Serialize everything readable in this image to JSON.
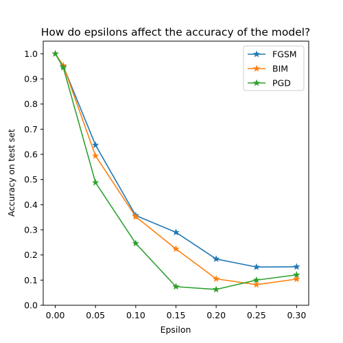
{
  "chart_data": {
    "type": "line",
    "title": "How do epsilons affect the accuracy of the model?",
    "xlabel": "Epsilon",
    "ylabel": "Accuracy on test set",
    "x": [
      0.0,
      0.01,
      0.05,
      0.1,
      0.15,
      0.2,
      0.25,
      0.3
    ],
    "xlim": [
      -0.015,
      0.315
    ],
    "ylim": [
      0.0,
      1.05
    ],
    "x_ticks": [
      0.0,
      0.05,
      0.1,
      0.15,
      0.2,
      0.25,
      0.3
    ],
    "x_tick_labels": [
      "0.00",
      "0.05",
      "0.10",
      "0.15",
      "0.20",
      "0.25",
      "0.30"
    ],
    "y_ticks": [
      0.0,
      0.1,
      0.2,
      0.3,
      0.4,
      0.5,
      0.6,
      0.7,
      0.8,
      0.9,
      1.0
    ],
    "y_tick_labels": [
      "0.0",
      "0.1",
      "0.2",
      "0.3",
      "0.4",
      "0.5",
      "0.6",
      "0.7",
      "0.8",
      "0.9",
      "1.0"
    ],
    "grid": false,
    "legend_position": "top-right",
    "marker": "star",
    "series": [
      {
        "name": "FGSM",
        "color": "#1f77b4",
        "values": [
          1.0,
          0.95,
          0.637,
          0.357,
          0.29,
          0.184,
          0.152,
          0.153
        ]
      },
      {
        "name": "BIM",
        "color": "#ff7f0e",
        "values": [
          1.0,
          0.953,
          0.594,
          0.352,
          0.224,
          0.105,
          0.082,
          0.104
        ]
      },
      {
        "name": "PGD",
        "color": "#2ca02c",
        "values": [
          1.0,
          0.945,
          0.488,
          0.246,
          0.074,
          0.063,
          0.1,
          0.121
        ]
      }
    ]
  }
}
